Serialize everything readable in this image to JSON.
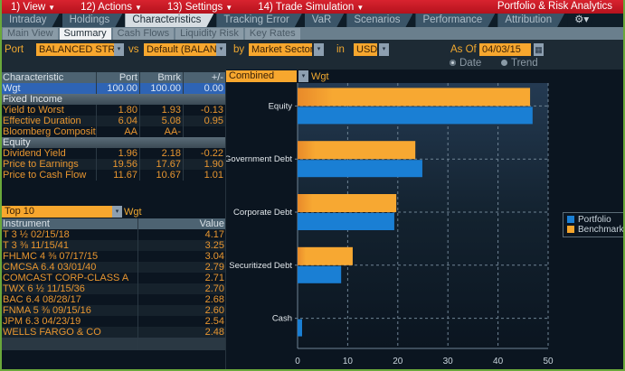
{
  "menubar": {
    "items": [
      {
        "label": "1) View"
      },
      {
        "label": "12) Actions"
      },
      {
        "label": "13) Settings"
      },
      {
        "label": "14) Trade Simulation"
      }
    ],
    "app_title": "Portfolio & Risk Analytics",
    "accent_color": "#c8192a"
  },
  "tabs": {
    "items": [
      {
        "label": "Intraday"
      },
      {
        "label": "Holdings"
      },
      {
        "label": "Characteristics",
        "active": true
      },
      {
        "label": "Tracking Error"
      },
      {
        "label": "VaR"
      },
      {
        "label": "Scenarios"
      },
      {
        "label": "Performance"
      },
      {
        "label": "Attribution"
      }
    ],
    "gear_label": "⚙▾"
  },
  "subtabs": {
    "items": [
      {
        "label": "Main View"
      },
      {
        "label": "Summary",
        "active": true
      },
      {
        "label": "Cash Flows"
      },
      {
        "label": "Liquidity Risk"
      },
      {
        "label": "Key Rates"
      }
    ]
  },
  "controls": {
    "port_label": "Port",
    "port_value": "BALANCED STRA",
    "vs_label": "vs",
    "bench_value": "Default (BALAN",
    "by_label": "by",
    "group_value": "Market Sector",
    "in_label": "in",
    "currency_value": "USD",
    "asof_label": "As Of",
    "asof_value": "04/03/15",
    "radio_date": "Date",
    "radio_trend": "Trend",
    "selected_radio": "Date",
    "dropdown_glyph": "▾",
    "calendar_glyph": "▦"
  },
  "characteristics": {
    "headers": [
      "Characteristic",
      "Port",
      "Bmrk",
      "+/-"
    ],
    "rows": [
      {
        "type": "selected",
        "cells": [
          "Wgt",
          "100.00",
          "100.00",
          "0.00"
        ]
      },
      {
        "type": "section",
        "cells": [
          "Fixed Income",
          "",
          "",
          ""
        ]
      },
      {
        "type": "data",
        "cells": [
          "Yield to Worst",
          "1.80",
          "1.93",
          "-0.13"
        ]
      },
      {
        "type": "data",
        "cells": [
          "Effective Duration",
          "6.04",
          "5.08",
          "0.95"
        ]
      },
      {
        "type": "data",
        "cells": [
          "Bloomberg Composite",
          "AA",
          "AA-",
          ""
        ]
      },
      {
        "type": "section",
        "cells": [
          "Equity",
          "",
          "",
          ""
        ]
      },
      {
        "type": "data",
        "cells": [
          "Dividend Yield",
          "1.96",
          "2.18",
          "-0.22"
        ]
      },
      {
        "type": "data",
        "cells": [
          "Price to Earnings",
          "19.56",
          "17.67",
          "1.90"
        ]
      },
      {
        "type": "data",
        "cells": [
          "Price to Cash Flow",
          "11.67",
          "10.67",
          "1.01"
        ]
      }
    ]
  },
  "top10": {
    "selector_value": "Top 10",
    "metric_label": "Wgt",
    "headers": [
      "Instrument",
      "Value"
    ],
    "rows": [
      {
        "instrument": "T 3 ½ 02/15/18",
        "value": "4.17"
      },
      {
        "instrument": "T 3 ⅜ 11/15/41",
        "value": "3.25"
      },
      {
        "instrument": "FHLMC 4 ⅜ 07/17/15",
        "value": "3.04"
      },
      {
        "instrument": "CMCSA 6.4 03/01/40",
        "value": "2.79"
      },
      {
        "instrument": "COMCAST CORP-CLASS A",
        "value": "2.71"
      },
      {
        "instrument": "TWX 6 ½ 11/15/36",
        "value": "2.70"
      },
      {
        "instrument": "BAC 6.4 08/28/17",
        "value": "2.68"
      },
      {
        "instrument": "FNMA 5 ⅜ 09/15/16",
        "value": "2.60"
      },
      {
        "instrument": "JPM 6.3 04/23/19",
        "value": "2.54"
      },
      {
        "instrument": "WELLS FARGO & CO",
        "value": "2.48"
      }
    ]
  },
  "chart_panel": {
    "selector_value": "Combined",
    "metric_label": "Wgt"
  },
  "chart_data": {
    "type": "bar",
    "orientation": "horizontal",
    "title": "",
    "xlabel": "",
    "ylabel": "",
    "categories": [
      "Equity",
      "Government Debt",
      "Corporate Debt",
      "Securitized Debt",
      "Cash"
    ],
    "series": [
      {
        "name": "Portfolio",
        "color": "#1a7fd4",
        "values": [
          46.9,
          24.9,
          19.3,
          8.7,
          0.9
        ]
      },
      {
        "name": "Benchmark",
        "color": "#f5a52c",
        "values": [
          46.4,
          23.5,
          19.7,
          11.0,
          0.0
        ]
      }
    ],
    "xlim": [
      0,
      50
    ],
    "xticks": [
      "0",
      "10",
      "20",
      "30",
      "40",
      "50"
    ],
    "grid": true,
    "legend_position": "right"
  }
}
